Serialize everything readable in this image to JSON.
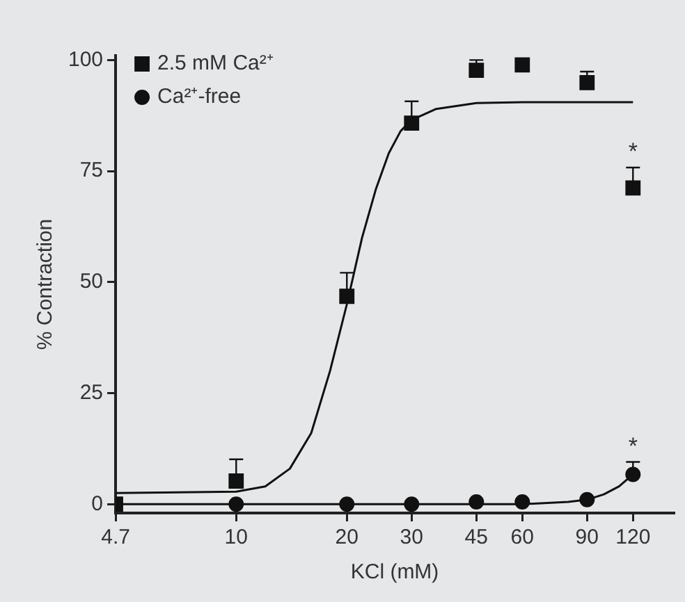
{
  "chart_data": {
    "type": "scatter",
    "xlabel": "KCl (mM)",
    "ylabel": "% Contraction",
    "log": "x",
    "xlim": [
      4.7,
      155
    ],
    "xticks": [
      4.7,
      10,
      20,
      30,
      45,
      60,
      90,
      120
    ],
    "ylim": [
      -2,
      101
    ],
    "yticks": [
      0,
      25,
      50,
      75,
      100
    ],
    "grid": false,
    "legend": "top left",
    "series": [
      {
        "name": "2.5 mM Ca²⁺",
        "color": "#111111",
        "marker": "square",
        "x": [
          4.7,
          10,
          20,
          30,
          45,
          60,
          90,
          120
        ],
        "values": [
          0,
          5.2,
          46.8,
          85.8,
          97.7,
          98.9,
          94.9,
          71.2
        ],
        "errors": [
          null,
          [
            5.2,
            10.1
          ],
          [
            46.8,
            52.1
          ],
          [
            85.8,
            90.7
          ],
          [
            97.7,
            100
          ],
          null,
          [
            94.9,
            97.4
          ],
          [
            71.2,
            75.8
          ]
        ]
      },
      {
        "name": "Ca²⁺-free",
        "color": "#111111",
        "marker": "circle",
        "x": [
          10,
          20,
          30,
          45,
          60,
          90,
          120
        ],
        "values": [
          0,
          0,
          0,
          0.5,
          0.5,
          1,
          6.7
        ],
        "errors": [
          null,
          null,
          null,
          null,
          null,
          null,
          [
            6.7,
            9.5
          ]
        ]
      },
      {
        "type": "line",
        "color": "#111111",
        "marker": "none",
        "x": [
          4.7,
          10,
          12,
          14,
          16,
          18,
          20,
          22,
          24,
          26,
          28,
          30,
          35,
          45,
          60,
          120
        ],
        "values": [
          2.5,
          2.8,
          4,
          8,
          16,
          30,
          45,
          60,
          71,
          79,
          84,
          86.5,
          89,
          90.3,
          90.5,
          90.5
        ]
      },
      {
        "type": "line",
        "color": "#111111",
        "marker": "none",
        "x": [
          4.7,
          30,
          60,
          80,
          90,
          100,
          110,
          120
        ],
        "values": [
          0,
          0,
          0,
          0.5,
          1,
          2.2,
          4,
          6.7
        ]
      }
    ],
    "annotations": [
      {
        "text": "*",
        "x": 120,
        "y": 75.8
      },
      {
        "text": "*",
        "x": 120,
        "y": 9.5
      }
    ]
  }
}
